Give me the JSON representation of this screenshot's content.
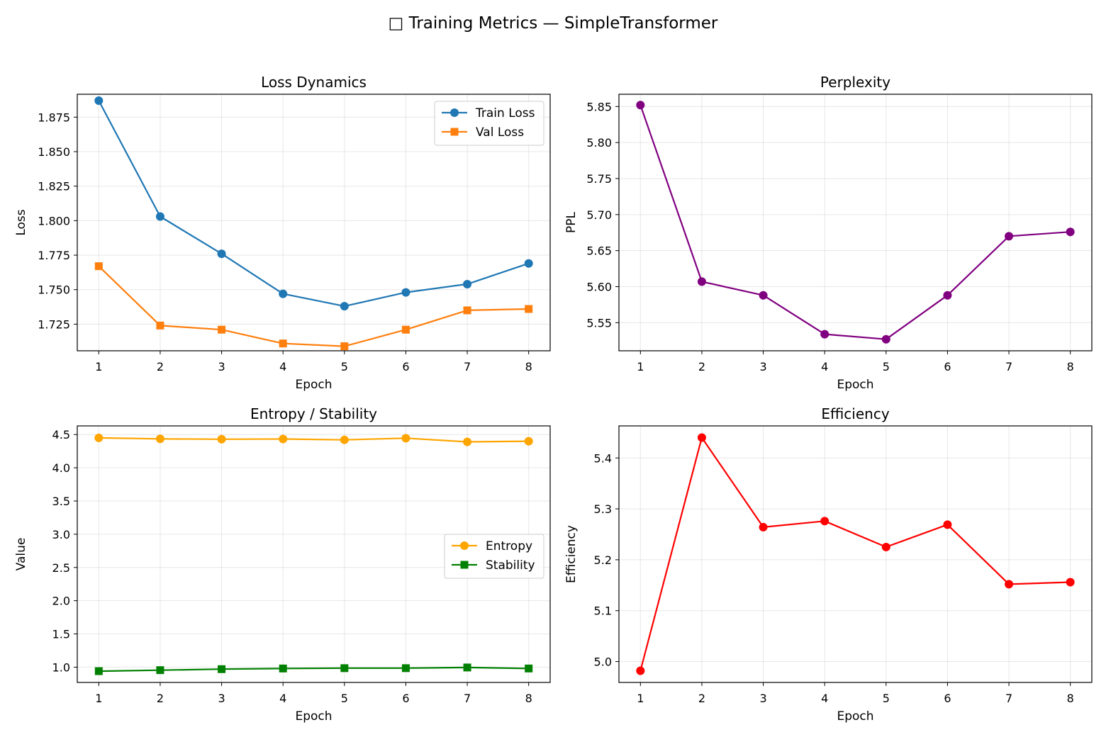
{
  "figure": {
    "title": "□ Training Metrics — SimpleTransformer"
  },
  "chart_data": [
    {
      "type": "line",
      "title": "Loss Dynamics",
      "xlabel": "Epoch",
      "ylabel": "Loss",
      "x": [
        1,
        2,
        3,
        4,
        5,
        6,
        7,
        8
      ],
      "xlim": [
        0.65,
        8.35
      ],
      "ylim": [
        1.7057,
        1.8916
      ],
      "yticks": [
        1.725,
        1.75,
        1.775,
        1.8,
        1.825,
        1.85,
        1.875
      ],
      "ytick_labels": [
        "1.725",
        "1.750",
        "1.775",
        "1.800",
        "1.825",
        "1.850",
        "1.875"
      ],
      "grid": true,
      "legend": "upper right",
      "series": [
        {
          "name": "Train Loss",
          "color": "#1f77b4",
          "marker": "circle",
          "values": [
            1.887,
            1.803,
            1.776,
            1.747,
            1.738,
            1.748,
            1.754,
            1.769
          ]
        },
        {
          "name": "Val Loss",
          "color": "#ff7f0e",
          "marker": "square",
          "values": [
            1.767,
            1.724,
            1.721,
            1.711,
            1.709,
            1.721,
            1.735,
            1.736
          ]
        }
      ]
    },
    {
      "type": "line",
      "title": "Perplexity",
      "xlabel": "Epoch",
      "ylabel": "PPL",
      "x": [
        1,
        2,
        3,
        4,
        5,
        6,
        7,
        8
      ],
      "xlim": [
        0.65,
        8.35
      ],
      "ylim": [
        5.511,
        5.867
      ],
      "yticks": [
        5.55,
        5.6,
        5.65,
        5.7,
        5.75,
        5.8,
        5.85
      ],
      "ytick_labels": [
        "5.55",
        "5.60",
        "5.65",
        "5.70",
        "5.75",
        "5.80",
        "5.85"
      ],
      "grid": true,
      "series": [
        {
          "name": "PPL",
          "color": "#800080",
          "marker": "circle",
          "values": [
            5.852,
            5.607,
            5.588,
            5.534,
            5.527,
            5.588,
            5.67,
            5.676
          ]
        }
      ]
    },
    {
      "type": "line",
      "title": "Entropy / Stability",
      "xlabel": "Epoch",
      "ylabel": "Value",
      "x": [
        1,
        2,
        3,
        4,
        5,
        6,
        7,
        8
      ],
      "xlim": [
        0.65,
        8.35
      ],
      "ylim": [
        0.77,
        4.63
      ],
      "yticks": [
        1.0,
        1.5,
        2.0,
        2.5,
        3.0,
        3.5,
        4.0,
        4.5
      ],
      "ytick_labels": [
        "1.0",
        "1.5",
        "2.0",
        "2.5",
        "3.0",
        "3.5",
        "4.0",
        "4.5"
      ],
      "grid": true,
      "legend": "center right",
      "series": [
        {
          "name": "Entropy",
          "color": "#ffa500",
          "marker": "circle",
          "values": [
            4.45,
            4.435,
            4.43,
            4.433,
            4.42,
            4.445,
            4.39,
            4.4
          ]
        },
        {
          "name": "Stability",
          "color": "#008000",
          "marker": "square",
          "values": [
            0.94,
            0.955,
            0.97,
            0.98,
            0.985,
            0.985,
            0.995,
            0.98
          ]
        }
      ]
    },
    {
      "type": "line",
      "title": "Efficiency",
      "xlabel": "Epoch",
      "ylabel": "Efficiency",
      "x": [
        1,
        2,
        3,
        4,
        5,
        6,
        7,
        8
      ],
      "xlim": [
        0.65,
        8.35
      ],
      "ylim": [
        4.959,
        5.463
      ],
      "yticks": [
        5.0,
        5.1,
        5.2,
        5.3,
        5.4
      ],
      "ytick_labels": [
        "5.0",
        "5.1",
        "5.2",
        "5.3",
        "5.4"
      ],
      "grid": true,
      "series": [
        {
          "name": "Efficiency",
          "color": "#ff0000",
          "marker": "circle",
          "values": [
            4.982,
            5.44,
            5.264,
            5.276,
            5.225,
            5.269,
            5.152,
            5.156
          ]
        }
      ]
    }
  ]
}
